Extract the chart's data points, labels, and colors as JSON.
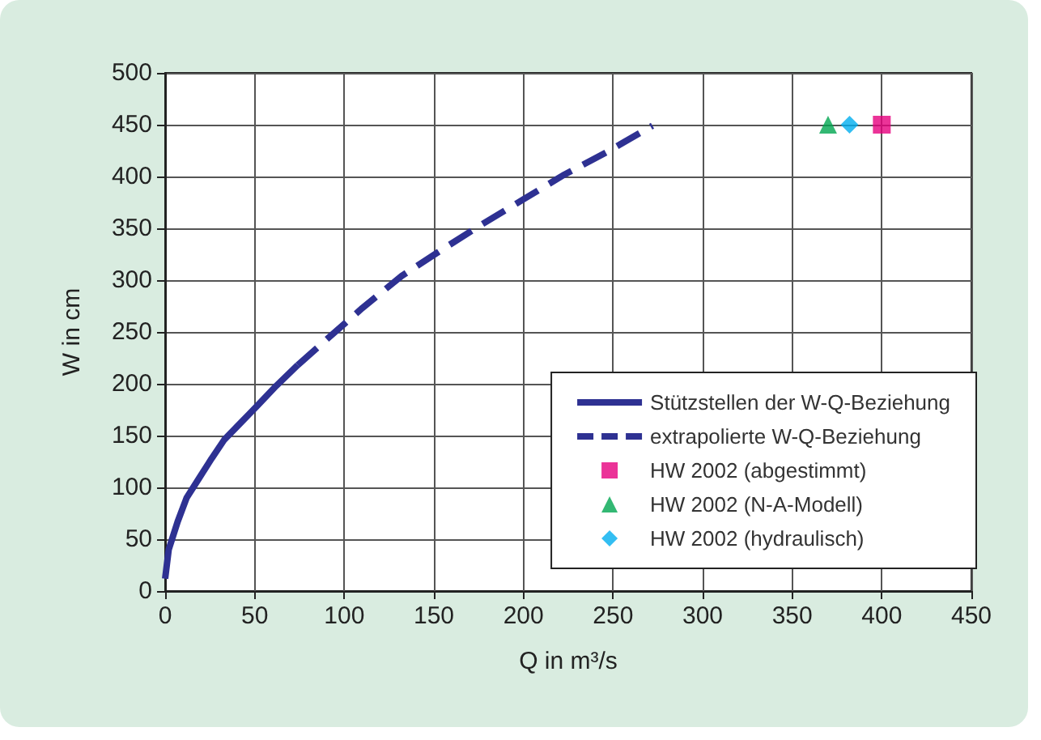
{
  "chart_data": {
    "type": "line",
    "xlabel": "Q in m³/s",
    "ylabel": "W in cm",
    "xlim": [
      0,
      450
    ],
    "xticks": [
      0,
      50,
      100,
      150,
      200,
      250,
      300,
      350,
      400,
      450
    ],
    "ylim": [
      0,
      500
    ],
    "yticks": [
      0,
      50,
      100,
      150,
      200,
      250,
      300,
      350,
      400,
      450,
      500
    ],
    "grid": true,
    "legend": "bottom right",
    "series": [
      {
        "name": "Stützstellen der W-Q-Beziehung",
        "line_style": "solid",
        "marker": "none",
        "color": "#2e3192",
        "x": [
          0,
          2,
          7,
          12,
          19,
          26,
          33,
          42,
          51,
          62,
          74
        ],
        "values": [
          12,
          40,
          67,
          90,
          109,
          128,
          146,
          162,
          178,
          198,
          218
        ]
      },
      {
        "name": "extrapolierte W-Q-Beziehung",
        "line_style": "dashed",
        "marker": "none",
        "color": "#2e3192",
        "x": [
          74,
          89,
          110,
          132,
          155,
          177,
          200,
          223,
          247,
          272
        ],
        "values": [
          218,
          241,
          273,
          304,
          330,
          354,
          378,
          402,
          424,
          449
        ]
      },
      {
        "name": "HW 2002 (abgestimmt)",
        "type": "scatter",
        "marker": "square",
        "color": "#e6007e",
        "x": [
          400
        ],
        "values": [
          450
        ]
      },
      {
        "name": "HW 2002 (N-A-Modell)",
        "type": "scatter",
        "marker": "triangle",
        "color": "#00a650",
        "x": [
          370
        ],
        "values": [
          450
        ]
      },
      {
        "name": "HW 2002 (hydraulisch)",
        "type": "scatter",
        "marker": "diamond",
        "color": "#00aeef",
        "x": [
          382
        ],
        "values": [
          450
        ]
      }
    ]
  }
}
